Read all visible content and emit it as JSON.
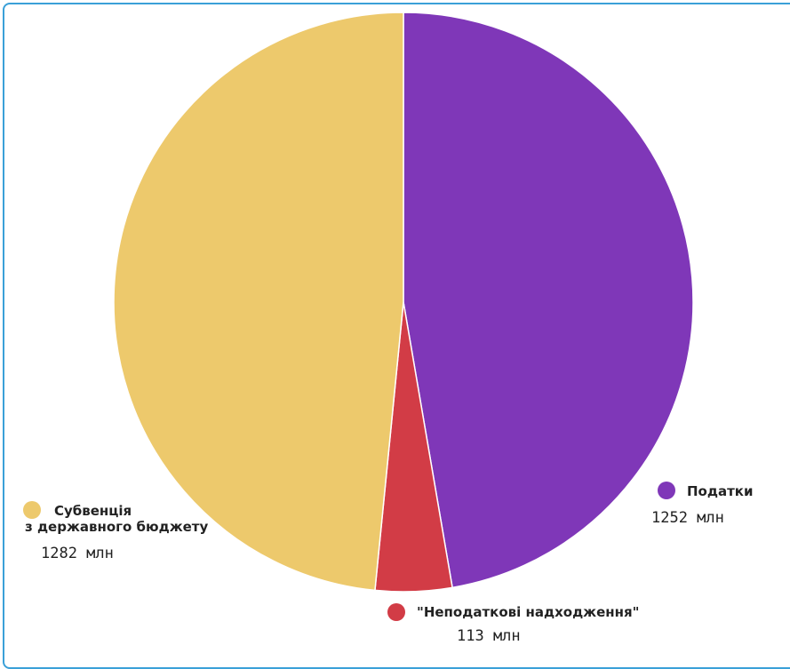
{
  "chart_data": {
    "type": "pie",
    "unit": "млн",
    "slices": [
      {
        "name": "Податки",
        "value": 1252,
        "value_label": "1252 млн",
        "color": "#7f37b8"
      },
      {
        "name": "\"Неподаткові надходження\"",
        "value": 113,
        "value_label": "113 млн",
        "color": "#d23c46"
      },
      {
        "name_lines": [
          "Субвенція",
          "з державного бюджету"
        ],
        "value": 1282,
        "value_label": "1282 млн",
        "color": "#edc96c"
      }
    ]
  }
}
